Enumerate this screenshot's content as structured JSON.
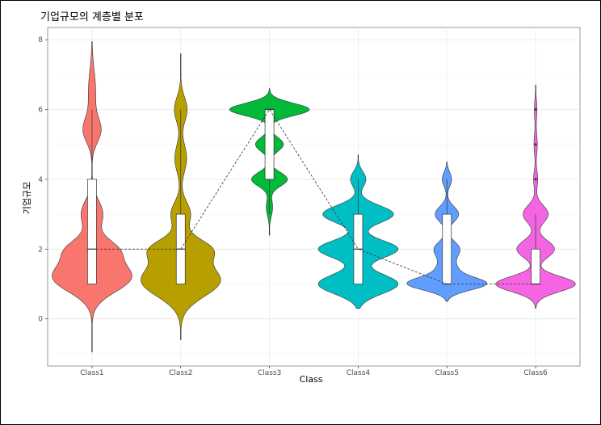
{
  "chart_data": {
    "type": "violin",
    "title": "기업규모의 계층별 분포",
    "xlabel": "Class",
    "ylabel": "기업규모",
    "categories": [
      "Class1",
      "Class2",
      "Class3",
      "Class4",
      "Class5",
      "Class6"
    ],
    "colors": [
      "#F8766D",
      "#B79F00",
      "#00BA38",
      "#00BFC4",
      "#619CFF",
      "#F564E3"
    ],
    "ylim": [
      -1.35,
      8.35
    ],
    "yticks": [
      0,
      2,
      4,
      6,
      8
    ],
    "grid": true,
    "violins": [
      {
        "class": "Class1",
        "range": [
          -0.95,
          7.95
        ],
        "modes": [
          {
            "y": 1.2,
            "w": 0.65,
            "s": 0.42
          },
          {
            "y": 2.0,
            "w": 0.35,
            "s": 0.3
          },
          {
            "y": 3.0,
            "w": 0.18,
            "s": 0.4
          },
          {
            "y": 5.4,
            "w": 0.14,
            "s": 0.35
          },
          {
            "y": 6.5,
            "w": 0.06,
            "s": 0.6
          }
        ]
      },
      {
        "class": "Class2",
        "range": [
          -0.6,
          7.6
        ],
        "modes": [
          {
            "y": 1.1,
            "w": 0.8,
            "s": 0.45
          },
          {
            "y": 2.0,
            "w": 0.55,
            "s": 0.3
          },
          {
            "y": 3.0,
            "w": 0.2,
            "s": 0.35
          },
          {
            "y": 4.6,
            "w": 0.12,
            "s": 0.4
          },
          {
            "y": 6.0,
            "w": 0.13,
            "s": 0.35
          }
        ]
      },
      {
        "class": "Class3",
        "range": [
          2.4,
          6.6
        ],
        "modes": [
          {
            "y": 6.0,
            "w": 1.0,
            "s": 0.18
          },
          {
            "y": 5.0,
            "w": 0.35,
            "s": 0.2
          },
          {
            "y": 4.0,
            "w": 0.45,
            "s": 0.2
          },
          {
            "y": 3.2,
            "w": 0.08,
            "s": 0.25
          }
        ]
      },
      {
        "class": "Class4",
        "range": [
          0.3,
          4.7
        ],
        "modes": [
          {
            "y": 1.0,
            "w": 0.62,
            "s": 0.28
          },
          {
            "y": 2.0,
            "w": 0.62,
            "s": 0.25
          },
          {
            "y": 3.0,
            "w": 0.55,
            "s": 0.25
          },
          {
            "y": 4.0,
            "w": 0.12,
            "s": 0.22
          }
        ]
      },
      {
        "class": "Class5",
        "range": [
          0.5,
          4.5
        ],
        "modes": [
          {
            "y": 1.0,
            "w": 0.95,
            "s": 0.18
          },
          {
            "y": 1.4,
            "w": 0.25,
            "s": 0.25
          },
          {
            "y": 2.0,
            "w": 0.32,
            "s": 0.22
          },
          {
            "y": 3.0,
            "w": 0.3,
            "s": 0.22
          },
          {
            "y": 4.0,
            "w": 0.12,
            "s": 0.2
          }
        ]
      },
      {
        "class": "Class6",
        "range": [
          0.3,
          6.7
        ],
        "modes": [
          {
            "y": 1.0,
            "w": 0.95,
            "s": 0.22
          },
          {
            "y": 2.0,
            "w": 0.45,
            "s": 0.25
          },
          {
            "y": 3.0,
            "w": 0.3,
            "s": 0.25
          },
          {
            "y": 4.0,
            "w": 0.05,
            "s": 0.25
          },
          {
            "y": 5.0,
            "w": 0.04,
            "s": 0.3
          },
          {
            "y": 6.0,
            "w": 0.03,
            "s": 0.3
          }
        ]
      }
    ],
    "boxes": [
      {
        "class": "Class1",
        "q1": 1,
        "median": 2,
        "q3": 4,
        "whisker_low": 1,
        "whisker_high": 6
      },
      {
        "class": "Class2",
        "q1": 1,
        "median": 2,
        "q3": 3,
        "whisker_low": 1,
        "whisker_high": 6
      },
      {
        "class": "Class3",
        "q1": 4,
        "median": 6,
        "q3": 6,
        "whisker_low": 3,
        "whisker_high": 6
      },
      {
        "class": "Class4",
        "q1": 1,
        "median": 2,
        "q3": 3,
        "whisker_low": 1,
        "whisker_high": 4
      },
      {
        "class": "Class5",
        "q1": 1,
        "median": 1,
        "q3": 3,
        "whisker_low": 1,
        "whisker_high": 4
      },
      {
        "class": "Class6",
        "q1": 1,
        "median": 1,
        "q3": 2,
        "whisker_low": 1,
        "whisker_high": 3,
        "outliers": [
          4,
          5,
          6
        ]
      }
    ],
    "median_line": [
      2,
      2,
      6,
      2,
      1,
      1
    ]
  }
}
